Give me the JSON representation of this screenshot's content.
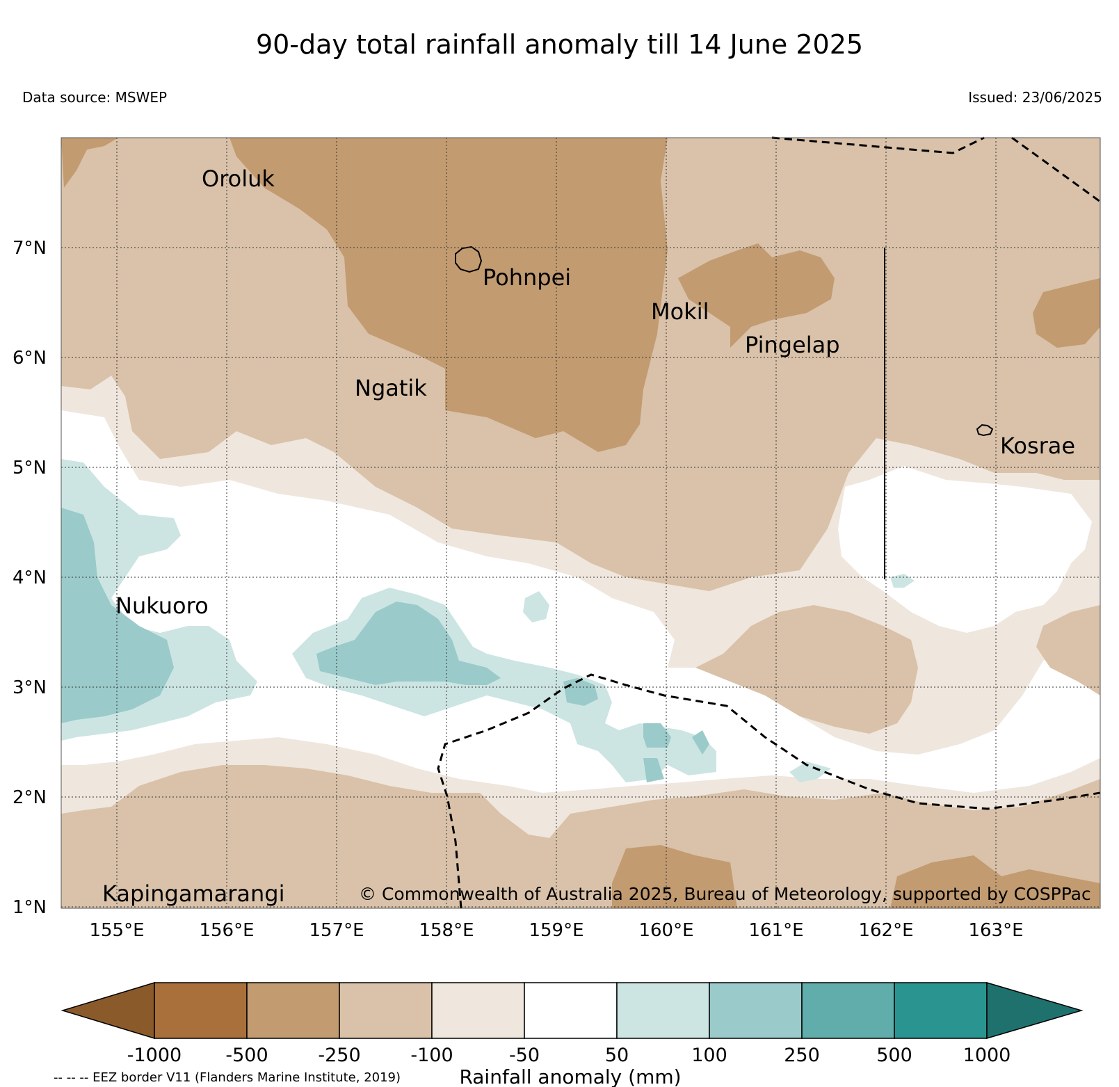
{
  "title": "90-day total rainfall anomaly till 14 June 2025",
  "data_source": "Data source: MSWEP",
  "issued": "Issued: 23/06/2025",
  "map": {
    "lat_labels": [
      "7°N",
      "6°N",
      "5°N",
      "4°N",
      "3°N",
      "2°N",
      "1°N"
    ],
    "lon_labels": [
      "155°E",
      "156°E",
      "157°E",
      "158°E",
      "159°E",
      "160°E",
      "161°E",
      "162°E",
      "163°E"
    ],
    "places": {
      "oroluk": "Oroluk",
      "pohnpei": "Pohnpei",
      "mokil": "Mokil",
      "pingelap": "Pingelap",
      "ngatik": "Ngatik",
      "kosrae": "Kosrae",
      "nukuoro": "Nukuoro",
      "kapingamarangi": "Kapingamarangi"
    },
    "copyright": "© Commonwealth of Australia 2025, Bureau of Meteorology, supported by COSPPac",
    "colors": {
      "lt_neg1000": "#8b5a2b",
      "neg1000_neg500": "#a9703c",
      "neg500_neg250": "#c29b71",
      "neg250_neg100": "#d9c2a9",
      "neg100_neg50": "#efe6dd",
      "neg50_50": "#ffffff",
      "50_100": "#cce5e3",
      "100_250": "#9acac9",
      "250_500": "#60adac",
      "500_1000": "#2a9590",
      "gt_1000": "#1f716e"
    }
  },
  "colorbar": {
    "ticks": [
      "-1000",
      "-500",
      "-250",
      "-100",
      "-50",
      "50",
      "100",
      "250",
      "500",
      "1000"
    ],
    "label": "Rainfall anomaly (mm)",
    "eez_note": "-- -- -- EEZ border V11 (Flanders Marine Institute, 2019)"
  }
}
